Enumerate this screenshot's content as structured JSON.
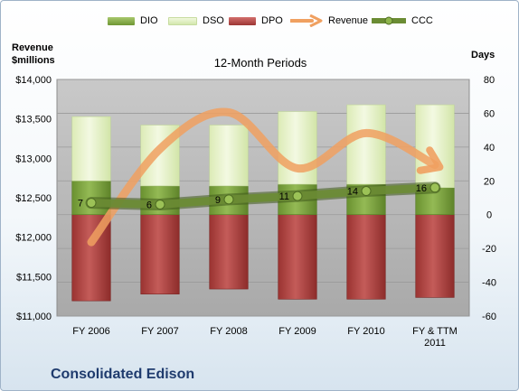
{
  "legend": {
    "dio": "DIO",
    "dso": "DSO",
    "dpo": "DPO",
    "revenue": "Revenue",
    "ccc": "CCC"
  },
  "left_axis_title": [
    "Revenue",
    "$millions"
  ],
  "right_axis_title": "Days",
  "subtitle": "12-Month Periods",
  "company": "Consolidated Edison",
  "colors": {
    "dio": "#7ea43f",
    "dso": "#e3f0c4",
    "dpo": "#b24744",
    "revenue": "#f0a060",
    "ccc": "#5a7a2a",
    "plot_bg": "#b9b9b9"
  },
  "chart_data": {
    "type": "bar",
    "categories": [
      "FY 2006",
      "FY 2007",
      "FY 2008",
      "FY 2009",
      "FY 2010",
      "FY & TTM\n2011"
    ],
    "series": [
      {
        "name": "DPO",
        "axis": "days",
        "values": [
          -51,
          -47,
          -44,
          -50,
          -50,
          -49
        ]
      },
      {
        "name": "DIO",
        "axis": "days",
        "values": [
          20,
          17,
          17,
          18,
          18,
          16
        ]
      },
      {
        "name": "DSO",
        "axis": "days",
        "values": [
          38,
          36,
          36,
          43,
          47,
          49
        ]
      },
      {
        "name": "CCC",
        "axis": "days",
        "type": "line",
        "values": [
          7,
          6,
          9,
          11,
          14,
          16
        ]
      },
      {
        "name": "Revenue",
        "axis": "revenue",
        "type": "line",
        "values": [
          11937,
          13120,
          13583,
          12873,
          13320,
          12917
        ]
      }
    ],
    "ccc_labels": [
      "7",
      "6",
      "9",
      "11",
      "14",
      "16"
    ],
    "left_axis": {
      "label": "Revenue $millions",
      "range": [
        11000,
        14000
      ],
      "ticks": [
        "$11,000",
        "$11,500",
        "$12,000",
        "$12,500",
        "$13,000",
        "$13,500",
        "$14,000"
      ],
      "tick_values": [
        11000,
        11500,
        12000,
        12500,
        13000,
        13500,
        14000
      ]
    },
    "right_axis": {
      "label": "Days",
      "range": [
        -60,
        80
      ],
      "ticks": [
        "-60",
        "-40",
        "-20",
        "0",
        "20",
        "40",
        "60",
        "80"
      ],
      "tick_values": [
        -60,
        -40,
        -20,
        0,
        20,
        40,
        60,
        80
      ]
    },
    "grid": true,
    "legend_position": "top"
  }
}
